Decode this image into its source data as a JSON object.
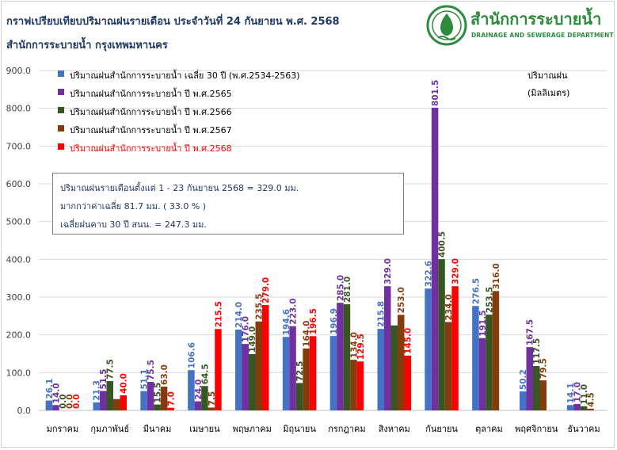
{
  "header": {
    "title_line1": "กราฟเปรียบเทียบปริมาณฝนรายเดือน ประจำวันที่    24     กันยายน     พ.ศ.     2568",
    "title_line2": "สำนักการระบายน้ำ กรุงเทพมหานคร"
  },
  "logo": {
    "name_th": "สำนักการระบายน้ำ",
    "name_en": "DRAINAGE AND SEWERAGE DEPARTMENT",
    "icon": "drainage-department-seal",
    "color": "#2e8b3e"
  },
  "info": {
    "line1": "ปริมาณฝนรายเดือนตั้งแต่ 1 - 23 กันยายน 2568 = 329.0 มม.",
    "line2": "มากกว่าค่าเฉลี่ย 81.7 มม. ( 33.0 % )",
    "line3": "เฉลี่ยฝนคาบ 30 ปี สนน. = 247.3 มม."
  },
  "chart_data": {
    "type": "bar",
    "unit_label_line1": "ปริมาณฝน",
    "unit_label_line2": "(มิลลิเมตร)",
    "ylim": [
      0,
      900
    ],
    "yticks": [
      "0.0",
      "100.0",
      "200.0",
      "300.0",
      "400.0",
      "500.0",
      "600.0",
      "700.0",
      "800.0",
      "900.0"
    ],
    "grid": true,
    "legend_position": "top-left",
    "categories": [
      "มกราคม",
      "กุมภาพันธ์",
      "มีนาคม",
      "เมษายน",
      "พฤษภาคม",
      "มิถุนายน",
      "กรกฎาคม",
      "สิงหาคม",
      "กันยายน",
      "ตุลาคม",
      "พฤศจิกายน",
      "ธันวาคม"
    ],
    "series": [
      {
        "name": "ปริมาณฝนสำนักการระบายน้ำ เฉลี่ย 30 ปี (พ.ศ.2534-2563)",
        "color": "#4472c4",
        "values": [
          26.1,
          21.3,
          51.1,
          106.6,
          214.0,
          194.6,
          196.9,
          215.8,
          322.6,
          276.5,
          50.2,
          14.1
        ],
        "labels": [
          "26.1",
          "21.3",
          "51.1",
          "106.6",
          "214.0",
          "194.6",
          "196.9",
          "215.8",
          "322.6",
          "276.5",
          "50.2",
          "14.1"
        ]
      },
      {
        "name": "ปริมาณฝนสำนักการระบายน้ำ ปี พ.ศ.2565",
        "color": "#7030a0",
        "values": [
          14.0,
          51.5,
          75.5,
          24.0,
          176.0,
          223.0,
          285.0,
          329.0,
          801.5,
          191.5,
          167.5,
          17.0
        ],
        "labels": [
          "14.0",
          "51.5",
          "75.5",
          "24.0",
          "176.0",
          "223.0",
          "285.0",
          "329.0",
          "801.5",
          "191.5",
          "167.5",
          "17.0"
        ]
      },
      {
        "name": "ปริมาณฝนสำนักการระบายน้ำ ปี พ.ศ.2566",
        "color": "#375623",
        "values": [
          0.0,
          77.5,
          15.5,
          64.5,
          149.0,
          72.5,
          281.0,
          225.0,
          400.5,
          253.5,
          117.5,
          11.0
        ],
        "labels": [
          "0.0",
          "77.5",
          "15.5",
          "64.5",
          "149.0",
          "72.5",
          "281.0",
          "",
          "400.5",
          "253.5",
          "117.5",
          "11.0"
        ]
      },
      {
        "name": "ปริมาณฝนสำนักการระบายน้ำ ปี พ.ศ.2567",
        "color": "#843c0c",
        "values": [
          0.0,
          30.0,
          63.0,
          7.5,
          235.5,
          164.0,
          134.0,
          253.0,
          234.0,
          316.0,
          79.5,
          4.5
        ],
        "labels": [
          "0.0",
          "",
          "63.0",
          "7.5",
          "235.5",
          "164.0",
          "134.0",
          "253.0",
          "234.0",
          "316.0",
          "79.5",
          "4.5"
        ]
      },
      {
        "name": "ปริมาณฝนสำนักการระบายน้ำ ปี พ.ศ.2568",
        "color": "#ff0000",
        "values": [
          0.0,
          40.0,
          7.0,
          215.5,
          279.0,
          196.5,
          129.5,
          145.0,
          329.0,
          null,
          null,
          null
        ],
        "labels": [
          "0.0",
          "40.0",
          "7.0",
          "215.5",
          "279.0",
          "196.5",
          "129.5",
          "145.0",
          "329.0",
          "",
          "",
          ""
        ]
      }
    ]
  }
}
